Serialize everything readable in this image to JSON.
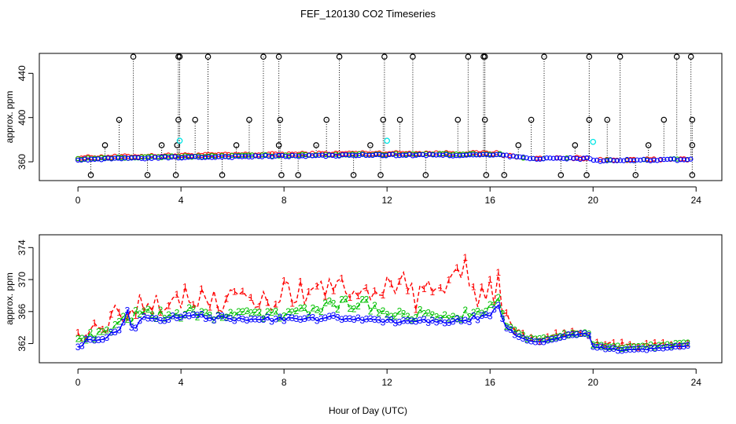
{
  "title": "FEF_120130  CO2 Timeseries",
  "xlabel": "Hour of Day (UTC)",
  "colors": {
    "series1": "#ff0000",
    "series2": "#00c000",
    "series3": "#0000ff",
    "black": "#000000",
    "cyan": "#00e5e5"
  },
  "chart_data": [
    {
      "type": "scatter",
      "title": "FEF_120130  CO2 Timeseries",
      "ylabel": "approx. ppm",
      "xlim": [
        -1.5,
        25
      ],
      "ylim": [
        343,
        458
      ],
      "xticks": [
        0,
        4,
        8,
        12,
        16,
        20,
        24
      ],
      "xtick_labels": [
        "0",
        "4",
        "8",
        "12",
        "16",
        "20",
        "24"
      ],
      "yticks": [
        360,
        400,
        440
      ],
      "ytick_labels": [
        "360",
        "400",
        "440"
      ],
      "spike_high": 455,
      "spike_low": 348,
      "spike_mid": 398,
      "spikes_high_x": [
        2.15,
        3.9,
        3.95,
        5.05,
        7.2,
        7.8,
        10.15,
        11.9,
        13.0,
        15.15,
        15.75,
        15.8,
        18.1,
        19.85,
        21.05,
        23.25,
        23.8
      ],
      "spikes_mid_x": [
        1.6,
        3.9,
        4.55,
        6.65,
        7.85,
        9.65,
        11.85,
        12.5,
        14.75,
        15.8,
        17.6,
        19.85,
        20.55,
        22.75,
        23.85
      ],
      "spikes_low_x": [
        0.5,
        2.7,
        3.8,
        5.6,
        7.9,
        8.55,
        10.7,
        11.75,
        13.5,
        15.85,
        16.55,
        18.75,
        19.75,
        21.65,
        23.85
      ],
      "spikes_small_x": [
        1.05,
        3.25,
        3.85,
        6.15,
        7.8,
        9.25,
        11.35,
        17.1,
        19.3,
        22.15,
        23.85
      ],
      "spike_small": 375,
      "cyan_points": [
        [
          3.95,
          379
        ],
        [
          12.0,
          379
        ],
        [
          20.0,
          378
        ]
      ]
    },
    {
      "type": "line",
      "ylabel": "approx. ppm",
      "xlim": [
        -1.5,
        25
      ],
      "ylim": [
        359.6,
        375.6
      ],
      "xticks": [
        0,
        4,
        8,
        12,
        16,
        20,
        24
      ],
      "xtick_labels": [
        "0",
        "4",
        "8",
        "12",
        "16",
        "20",
        "24"
      ],
      "yticks": [
        362,
        366,
        370,
        374
      ],
      "ytick_labels": [
        "362",
        "366",
        "370",
        "374"
      ],
      "series": [
        {
          "name": "1",
          "marker": "1",
          "knots": [
            [
              0,
              362.5
            ],
            [
              0.5,
              363.5
            ],
            [
              1.0,
              364.3
            ],
            [
              1.5,
              365.5
            ],
            [
              2.0,
              366.0
            ],
            [
              2.6,
              367.6
            ],
            [
              3.5,
              367.4
            ],
            [
              4.5,
              367.9
            ],
            [
              5.5,
              367.4
            ],
            [
              6.5,
              367.6
            ],
            [
              7.5,
              367.4
            ],
            [
              8.0,
              368.7
            ],
            [
              9.0,
              368.2
            ],
            [
              10.0,
              368.6
            ],
            [
              11.0,
              368.9
            ],
            [
              12.0,
              369.3
            ],
            [
              13.0,
              369.6
            ],
            [
              14.0,
              369.1
            ],
            [
              14.8,
              370.0
            ],
            [
              15.0,
              373.4
            ],
            [
              15.4,
              367.6
            ],
            [
              16.0,
              368.5
            ],
            [
              16.3,
              370.6
            ],
            [
              16.6,
              365.4
            ],
            [
              17.0,
              363.7
            ],
            [
              17.5,
              362.8
            ],
            [
              18.0,
              362.6
            ],
            [
              19.0,
              363.4
            ],
            [
              19.8,
              363.6
            ],
            [
              20.0,
              362.0
            ],
            [
              21.0,
              361.8
            ],
            [
              22.0,
              361.7
            ],
            [
              23.0,
              361.9
            ],
            [
              23.8,
              362.1
            ]
          ]
        },
        {
          "name": "2",
          "marker": "2",
          "knots": [
            [
              0,
              362.2
            ],
            [
              0.5,
              362.9
            ],
            [
              1.0,
              363.5
            ],
            [
              1.5,
              364.6
            ],
            [
              2.0,
              365.2
            ],
            [
              2.6,
              365.8
            ],
            [
              3.5,
              365.6
            ],
            [
              4.5,
              366.0
            ],
            [
              5.5,
              365.5
            ],
            [
              6.5,
              365.6
            ],
            [
              7.5,
              365.5
            ],
            [
              8.0,
              365.8
            ],
            [
              9.0,
              366.3
            ],
            [
              10.0,
              366.8
            ],
            [
              11.0,
              367.0
            ],
            [
              12.0,
              366.0
            ],
            [
              13.0,
              365.6
            ],
            [
              14.0,
              365.4
            ],
            [
              15.0,
              365.6
            ],
            [
              16.0,
              366.6
            ],
            [
              16.3,
              367.4
            ],
            [
              16.6,
              364.8
            ],
            [
              17.0,
              363.5
            ],
            [
              17.5,
              362.6
            ],
            [
              18.0,
              362.5
            ],
            [
              19.0,
              363.2
            ],
            [
              19.8,
              363.5
            ],
            [
              20.0,
              361.8
            ],
            [
              21.0,
              361.5
            ],
            [
              22.0,
              361.6
            ],
            [
              23.0,
              361.8
            ],
            [
              23.8,
              362.0
            ]
          ]
        },
        {
          "name": "3",
          "marker": "3",
          "knots": [
            [
              0,
              361.9
            ],
            [
              0.5,
              362.4
            ],
            [
              1.0,
              362.9
            ],
            [
              1.5,
              363.4
            ],
            [
              1.85,
              364.8
            ],
            [
              1.95,
              367.0
            ],
            [
              2.1,
              363.8
            ],
            [
              2.6,
              365.4
            ],
            [
              3.5,
              365.1
            ],
            [
              4.5,
              365.4
            ],
            [
              5.5,
              365.1
            ],
            [
              6.5,
              365.0
            ],
            [
              7.5,
              365.1
            ],
            [
              8.0,
              364.9
            ],
            [
              9.0,
              365.0
            ],
            [
              10.0,
              365.2
            ],
            [
              11.0,
              365.0
            ],
            [
              12.0,
              364.9
            ],
            [
              13.0,
              364.8
            ],
            [
              14.0,
              364.7
            ],
            [
              15.0,
              364.9
            ],
            [
              16.0,
              365.5
            ],
            [
              16.3,
              366.8
            ],
            [
              16.6,
              364.4
            ],
            [
              17.0,
              363.0
            ],
            [
              17.5,
              362.3
            ],
            [
              18.0,
              362.2
            ],
            [
              19.0,
              363.0
            ],
            [
              19.8,
              363.3
            ],
            [
              20.0,
              361.6
            ],
            [
              21.0,
              361.2
            ],
            [
              22.0,
              361.3
            ],
            [
              23.0,
              361.5
            ],
            [
              23.8,
              361.8
            ]
          ]
        }
      ]
    }
  ]
}
